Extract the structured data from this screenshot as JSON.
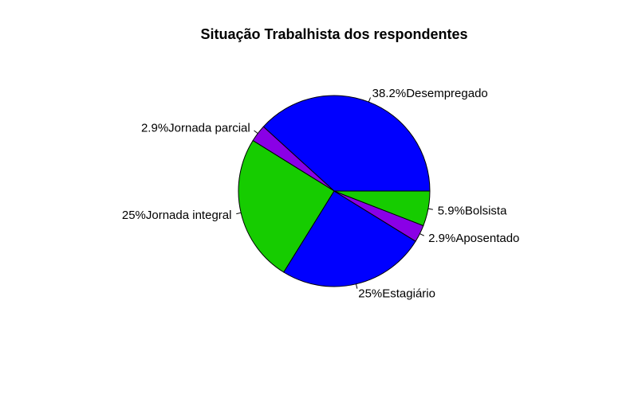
{
  "chart_data": {
    "type": "pie",
    "title": "Situação Trabalhista dos respondentes",
    "direction": "counterclockwise",
    "start": "3 o'clock",
    "slices": [
      {
        "label": "38.2%Desempregado",
        "value": 38.2,
        "color": "#0000FF"
      },
      {
        "label": "2.9%Jornada parcial",
        "value": 2.9,
        "color": "#8A00E6"
      },
      {
        "label": "25%Jornada integral",
        "value": 25,
        "color": "#16CC00"
      },
      {
        "label": "25%Estagiário",
        "value": 25,
        "color": "#0000FF"
      },
      {
        "label": "2.9%Aposentado",
        "value": 2.9,
        "color": "#8A00E6"
      },
      {
        "label": "5.9%Bolsista",
        "value": 5.9,
        "color": "#16CC00"
      }
    ]
  }
}
